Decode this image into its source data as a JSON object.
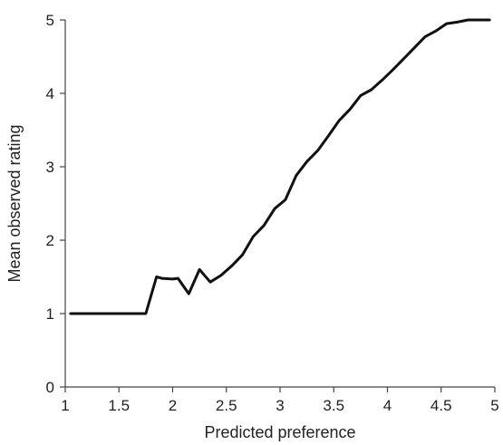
{
  "chart_data": {
    "type": "line",
    "title": "",
    "xlabel": "Predicted preference",
    "ylabel": "Mean observed rating",
    "xlim": [
      1,
      5
    ],
    "ylim": [
      0,
      5
    ],
    "grid": false,
    "x_ticks": [
      "1",
      "1.5",
      "2",
      "2.5",
      "3",
      "3.5",
      "4",
      "4.5",
      "5"
    ],
    "y_ticks": [
      "0",
      "1",
      "2",
      "3",
      "4",
      "5"
    ],
    "line_color": "#111111",
    "series": [
      {
        "x": [
          1.05,
          1.1,
          1.2,
          1.3,
          1.4,
          1.5,
          1.6,
          1.7,
          1.75,
          1.85,
          1.9,
          2.0,
          2.05,
          2.15,
          2.25,
          2.35,
          2.45,
          2.55,
          2.65,
          2.75,
          2.85,
          2.95,
          3.05,
          3.15,
          3.25,
          3.35,
          3.45,
          3.55,
          3.65,
          3.75,
          3.85,
          3.95,
          4.05,
          4.15,
          4.25,
          4.35,
          4.45,
          4.55,
          4.65,
          4.75,
          4.85,
          4.95
        ],
        "y": [
          1.0,
          1.0,
          1.0,
          1.0,
          1.0,
          1.0,
          1.0,
          1.0,
          1.0,
          1.5,
          1.48,
          1.47,
          1.48,
          1.27,
          1.6,
          1.43,
          1.52,
          1.65,
          1.8,
          2.05,
          2.2,
          2.43,
          2.55,
          2.88,
          3.07,
          3.22,
          3.42,
          3.63,
          3.78,
          3.97,
          4.05,
          4.18,
          4.32,
          4.47,
          4.62,
          4.77,
          4.85,
          4.95,
          4.97,
          5.0,
          5.0,
          5.0
        ]
      }
    ]
  }
}
